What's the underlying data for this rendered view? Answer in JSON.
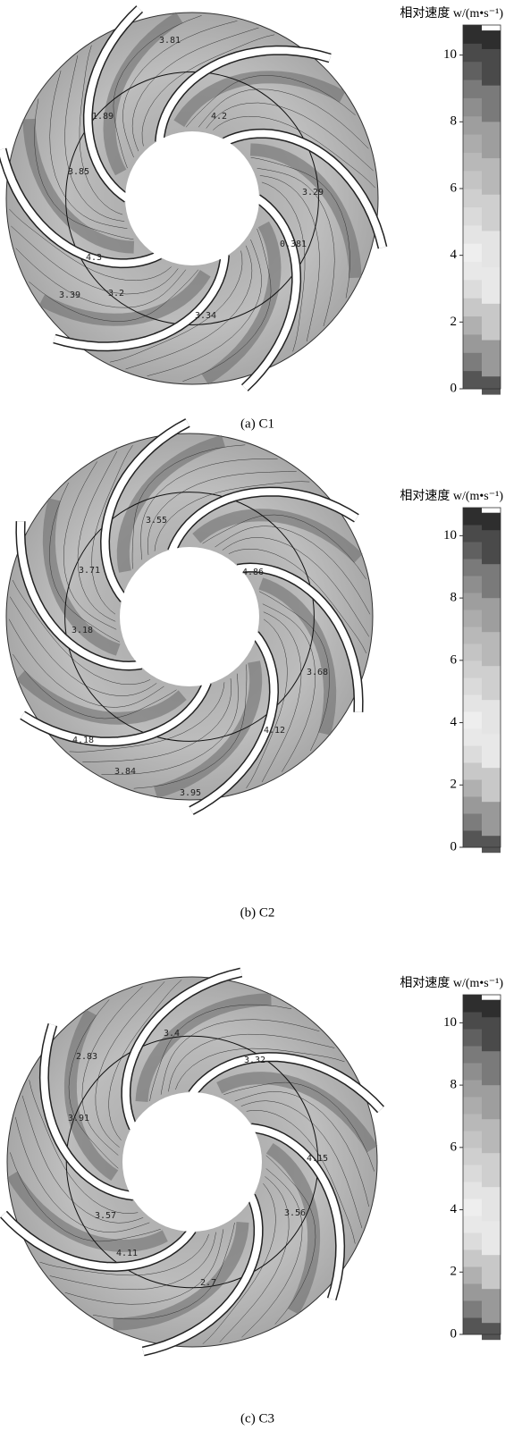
{
  "chart_data": [
    {
      "type": "contour",
      "title": "(a) C1",
      "colorbar_label": "相对速度 w/(m•s⁻¹)",
      "clim": [
        0,
        10.9
      ],
      "cticks": [
        0,
        2,
        4,
        6,
        8,
        10
      ],
      "contour_labels": [
        3.81,
        4.2,
        1.89,
        3.85,
        3.29,
        0.381,
        4.3,
        3.39,
        3.2,
        3.34
      ]
    },
    {
      "type": "contour",
      "title": "(b) C2",
      "colorbar_label": "相对速度 w/(m•s⁻¹)",
      "clim": [
        0,
        10.9
      ],
      "cticks": [
        0,
        2,
        4,
        6,
        8,
        10
      ],
      "contour_labels": [
        3.55,
        4.86,
        3.71,
        3.18,
        3.68,
        4.12,
        4.18,
        3.84,
        3.95
      ]
    },
    {
      "type": "contour",
      "title": "(c) C3",
      "colorbar_label": "相对速度 w/(m•s⁻¹)",
      "clim": [
        0,
        10.9
      ],
      "cticks": [
        0,
        2,
        4,
        6,
        8,
        10
      ],
      "contour_labels": [
        3.4,
        3.32,
        2.83,
        3.91,
        4.15,
        3.56,
        3.57,
        4.11,
        2.7
      ]
    }
  ]
}
